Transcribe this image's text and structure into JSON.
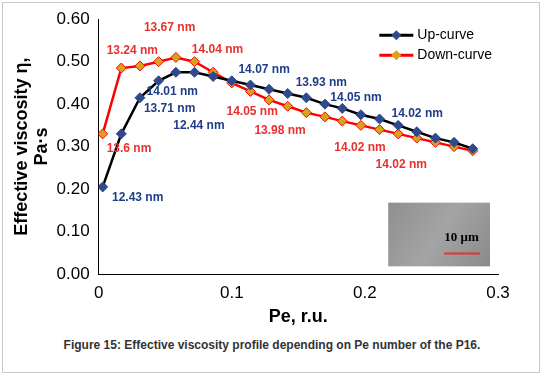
{
  "chart_data": {
    "type": "line",
    "caption": "Figure 15: Effective viscosity profile depending on Pe number of the P16.",
    "x_label": "Pe, r.u.",
    "y_label": [
      "Effective viscosity η,",
      "Pa·s"
    ],
    "xlim": [
      0,
      0.3
    ],
    "xticks": [
      0,
      0.1,
      0.2,
      0.3
    ],
    "ylim": [
      0,
      0.6
    ],
    "yticks": [
      {
        "value": 0,
        "label": "0.00"
      },
      {
        "value": 0.1,
        "label": "0.10"
      },
      {
        "value": 0.2,
        "label": "0.20"
      },
      {
        "value": 0.3,
        "label": "0.30"
      },
      {
        "value": 0.4,
        "label": "0.40"
      },
      {
        "value": 0.5,
        "label": "0.50"
      },
      {
        "value": 0.6,
        "label": "0.60"
      }
    ],
    "grid": false,
    "legend": "upper right",
    "x": [
      0.003,
      0.017,
      0.031,
      0.045,
      0.058,
      0.072,
      0.086,
      0.1,
      0.114,
      0.128,
      0.142,
      0.156,
      0.17,
      0.183,
      0.197,
      0.211,
      0.225,
      0.239,
      0.253,
      0.267,
      0.281
    ],
    "series": [
      {
        "name": "Up-curve",
        "color": "#000000",
        "marker": "diamond",
        "values": [
          0.205,
          0.33,
          0.415,
          0.455,
          0.475,
          0.475,
          0.465,
          0.455,
          0.445,
          0.435,
          0.425,
          0.415,
          0.4,
          0.39,
          0.375,
          0.365,
          0.35,
          0.335,
          0.32,
          0.31,
          0.295
        ]
      },
      {
        "name": "Down-curve",
        "color": "#ff0000",
        "marker": "diamond",
        "values": [
          0.33,
          0.485,
          0.49,
          0.5,
          0.51,
          0.5,
          0.475,
          0.45,
          0.43,
          0.41,
          0.395,
          0.38,
          0.37,
          0.36,
          0.35,
          0.34,
          0.33,
          0.32,
          0.31,
          0.3,
          0.29
        ]
      }
    ],
    "annotations": [
      {
        "text": "12.43 nm",
        "color": "#1f3c88",
        "x": 0.01,
        "y": 0.18
      },
      {
        "text": "13.6 nm",
        "color": "#e8312f",
        "x": 0.006,
        "y": 0.295
      },
      {
        "text": "12.44 nm",
        "color": "#1f3c88",
        "x": 0.056,
        "y": 0.35
      },
      {
        "text": "13.71 nm",
        "color": "#1f3c88",
        "x": 0.034,
        "y": 0.39
      },
      {
        "text": "14.01 nm",
        "color": "#1f3c88",
        "x": 0.036,
        "y": 0.43
      },
      {
        "text": "13.24 nm",
        "color": "#e8312f",
        "x": 0.006,
        "y": 0.525
      },
      {
        "text": "13.67 nm",
        "color": "#e8312f",
        "x": 0.034,
        "y": 0.58
      },
      {
        "text": "14.04 nm",
        "color": "#e8312f",
        "x": 0.07,
        "y": 0.528
      },
      {
        "text": "14.07 nm",
        "color": "#1f3c88",
        "x": 0.105,
        "y": 0.48
      },
      {
        "text": "13.93 nm",
        "color": "#1f3c88",
        "x": 0.148,
        "y": 0.45
      },
      {
        "text": "14.05 nm",
        "color": "#1f3c88",
        "x": 0.174,
        "y": 0.415
      },
      {
        "text": "14.05 nm",
        "color": "#e8312f",
        "x": 0.096,
        "y": 0.383
      },
      {
        "text": "13.98 nm",
        "color": "#e8312f",
        "x": 0.117,
        "y": 0.338
      },
      {
        "text": "14.02 nm",
        "color": "#1f3c88",
        "x": 0.22,
        "y": 0.378
      },
      {
        "text": "14.02 nm",
        "color": "#e8312f",
        "x": 0.177,
        "y": 0.298
      },
      {
        "text": "14.02 nm",
        "color": "#e8312f",
        "x": 0.208,
        "y": 0.258
      }
    ],
    "inset_label": "10 μm"
  }
}
